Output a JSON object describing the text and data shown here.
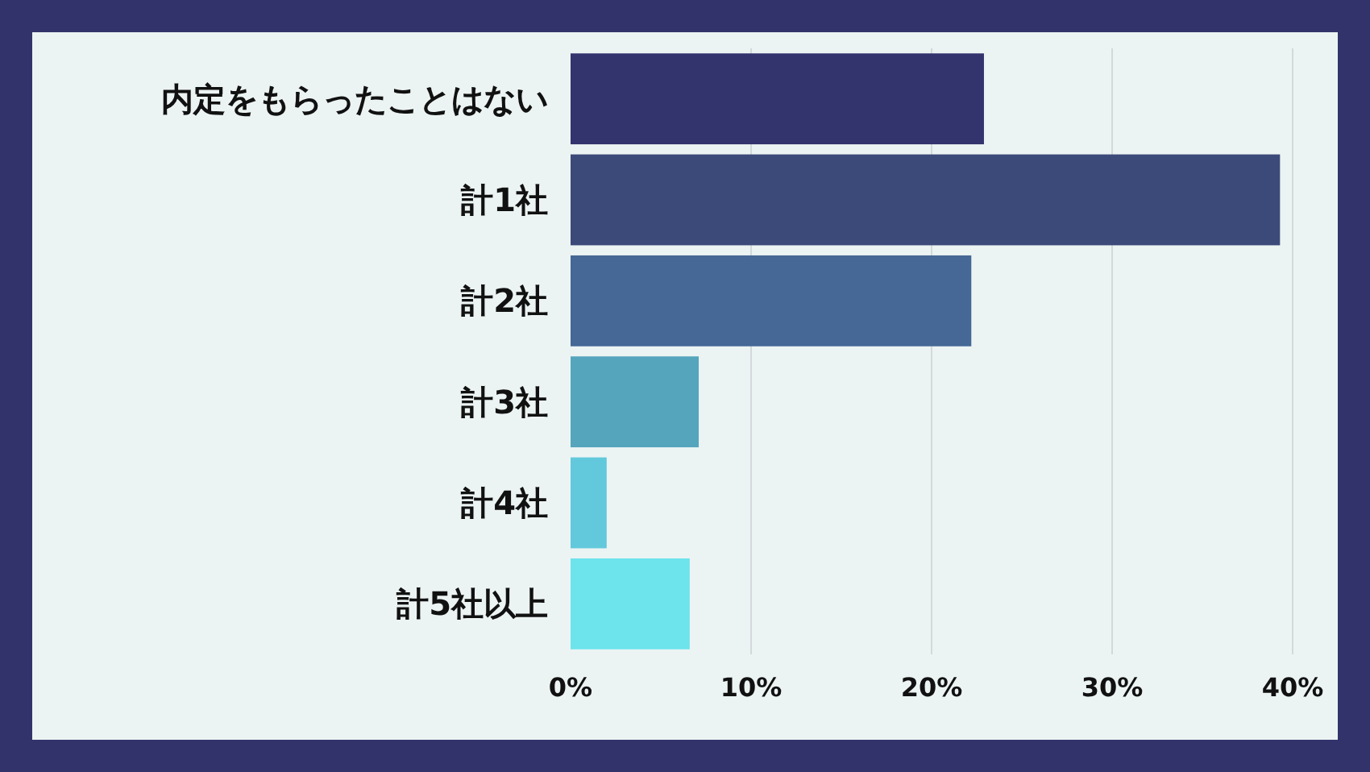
{
  "chart_data": {
    "type": "bar",
    "orientation": "horizontal",
    "categories": [
      "内定をもらったことはない",
      "計1社",
      "計2社",
      "計3社",
      "計4社",
      "計5社以上"
    ],
    "values": [
      22.9,
      39.3,
      22.2,
      7.1,
      2.0,
      6.6
    ],
    "colors": [
      "#33336e",
      "#3c4a7a",
      "#456896",
      "#55a5bd",
      "#62c9dc",
      "#6de3ec"
    ],
    "xlim": [
      0,
      40
    ],
    "xticks": [
      {
        "value": 0,
        "label": "0%"
      },
      {
        "value": 10,
        "label": "10%"
      },
      {
        "value": 20,
        "label": "20%"
      },
      {
        "value": 30,
        "label": "30%"
      },
      {
        "value": 40,
        "label": "40%"
      }
    ],
    "grid": "x"
  }
}
